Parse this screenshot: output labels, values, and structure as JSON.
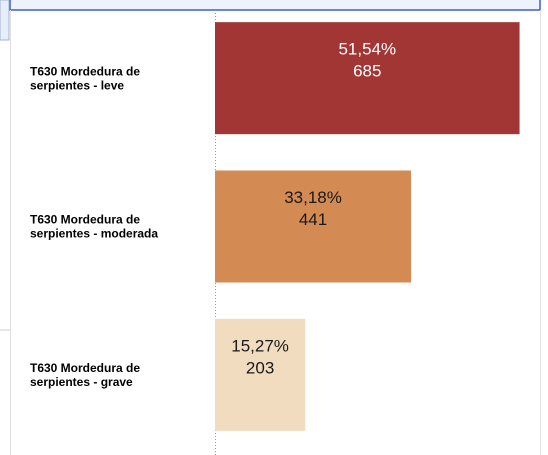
{
  "chart_data": {
    "type": "bar",
    "orientation": "horizontal",
    "categories": [
      [
        "T630 Mordedura de",
        "serpientes - leve"
      ],
      [
        "T630 Mordedura de",
        "serpientes - moderada"
      ],
      [
        "T630 Mordedura de",
        "serpientes - grave"
      ]
    ],
    "values": [
      51.54,
      33.18,
      15.27
    ],
    "value_labels": [
      "51,54%",
      "33,18%",
      "15,27%"
    ],
    "counts": [
      685,
      441,
      203
    ],
    "colors": [
      "#a13634",
      "#d38a53",
      "#f1dcc0"
    ],
    "label_colors": [
      "#ffffff",
      "#1a1a1a",
      "#1a1a1a"
    ],
    "xlim": [
      0,
      55
    ]
  }
}
